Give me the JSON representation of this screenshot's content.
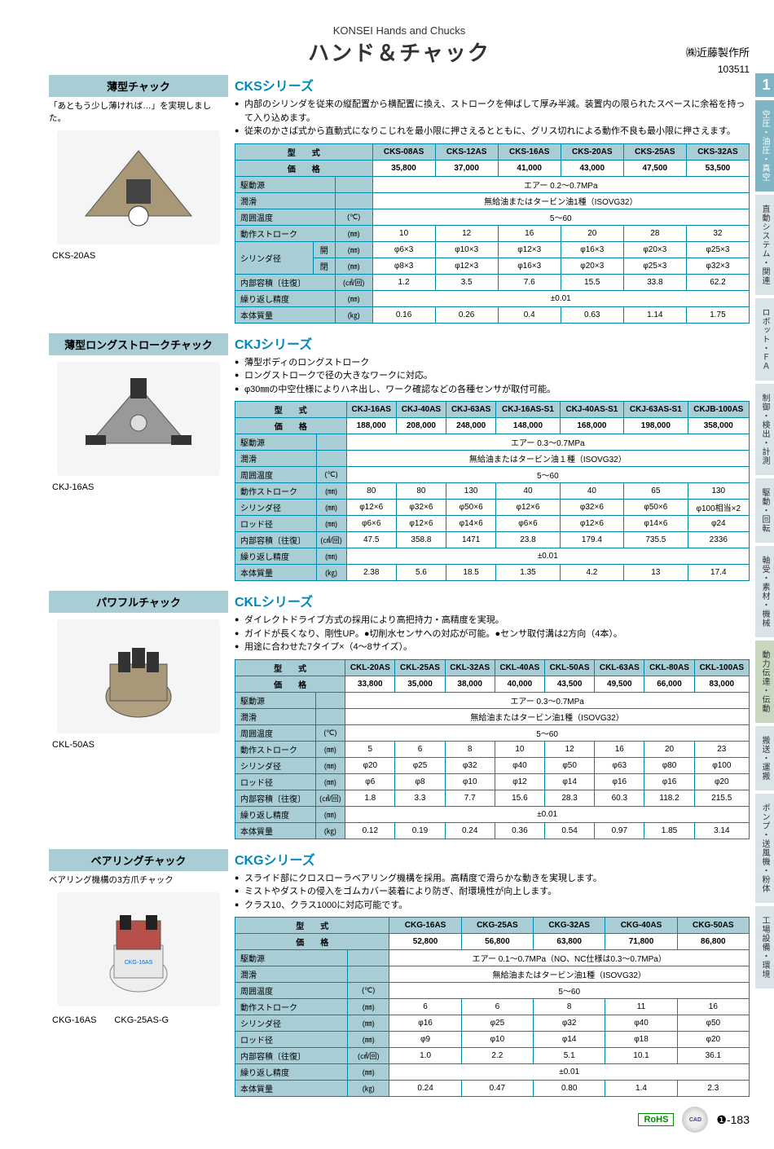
{
  "header": {
    "eng": "KONSEI Hands and Chucks",
    "jp": "ハンド＆チャック",
    "company": "㈱近藤製作所",
    "code": "103511"
  },
  "side_tabs": [
    {
      "label": "空圧・油圧・真空",
      "num": "1",
      "active": true
    },
    {
      "label": "直動システム・関連"
    },
    {
      "label": "ロボット・ＦＡ"
    },
    {
      "label": "制御・検出・計測"
    },
    {
      "label": "駆動・回転"
    },
    {
      "label": "軸受・素材・機械"
    },
    {
      "label": "動力伝達・伝動",
      "green": true
    },
    {
      "label": "搬送・運搬"
    },
    {
      "label": "ポンプ・送風機・粉体"
    },
    {
      "label": "工場設備・環境"
    }
  ],
  "sections": [
    {
      "category": "薄型チャック",
      "category_sub": "「あともう少し薄ければ…」を実現しました。",
      "img_label": "CKS-20AS",
      "series": "CKSシリーズ",
      "bullets": [
        "内部のシリンダを従来の縦配置から横配置に換え、ストロークを伸ばして厚み半減。装置内の限られたスペースに余裕を持って入り込めます。",
        "従来のかさば式から直動式になりこじれを最小限に押さえるとともに、グリス切れによる動作不良も最小限に押さえます。"
      ],
      "table": {
        "models": [
          "CKS-08AS",
          "CKS-12AS",
          "CKS-16AS",
          "CKS-20AS",
          "CKS-25AS",
          "CKS-32AS"
        ],
        "prices": [
          "35,800",
          "37,000",
          "41,000",
          "43,000",
          "47,500",
          "53,500"
        ],
        "rows": [
          {
            "label": "駆動源",
            "unit": "",
            "span": "エアー 0.2〜0.7MPa"
          },
          {
            "label": "潤滑",
            "unit": "",
            "span": "無給油またはタービン油1種（ISOVG32）"
          },
          {
            "label": "周囲温度",
            "unit": "(℃)",
            "span": "5〜60"
          },
          {
            "label": "動作ストローク",
            "unit": "(㎜)",
            "vals": [
              "10",
              "12",
              "16",
              "20",
              "28",
              "32"
            ]
          },
          {
            "label": "シリンダ径",
            "sub": "開",
            "unit": "(㎜)",
            "vals": [
              "φ6×3",
              "φ10×3",
              "φ12×3",
              "φ16×3",
              "φ20×3",
              "φ25×3"
            ]
          },
          {
            "label": "",
            "sub": "閉",
            "unit": "(㎜)",
            "vals": [
              "φ8×3",
              "φ12×3",
              "φ16×3",
              "φ20×3",
              "φ25×3",
              "φ32×3"
            ]
          },
          {
            "label": "内部容積〔往復〕",
            "unit": "(㎤/回)",
            "vals": [
              "1.2",
              "3.5",
              "7.6",
              "15.5",
              "33.8",
              "62.2"
            ]
          },
          {
            "label": "繰り返し精度",
            "unit": "(㎜)",
            "span": "±0.01"
          },
          {
            "label": "本体質量",
            "unit": "(㎏)",
            "vals": [
              "0.16",
              "0.26",
              "0.4",
              "0.63",
              "1.14",
              "1.75"
            ]
          }
        ]
      }
    },
    {
      "category": "薄型ロングストロークチャック",
      "category_sub": "",
      "img_label": "CKJ-16AS",
      "series": "CKJシリーズ",
      "bullets": [
        "薄型ボディのロングストローク",
        "ロングストロークで径の大きなワークに対応。",
        "φ30㎜の中空仕様によりハネ出し、ワーク確認などの各種センサが取付可能。"
      ],
      "table": {
        "models": [
          "CKJ-16AS",
          "CKJ-40AS",
          "CKJ-63AS",
          "CKJ-16AS-S1",
          "CKJ-40AS-S1",
          "CKJ-63AS-S1",
          "CKJB-100AS"
        ],
        "prices": [
          "188,000",
          "208,000",
          "248,000",
          "148,000",
          "168,000",
          "198,000",
          "358,000"
        ],
        "rows": [
          {
            "label": "駆動源",
            "unit": "",
            "span": "エアー 0.3〜0.7MPa"
          },
          {
            "label": "潤滑",
            "unit": "",
            "span": "無給油またはタービン油１種（ISOVG32）"
          },
          {
            "label": "周囲温度",
            "unit": "(℃)",
            "span": "5〜60"
          },
          {
            "label": "動作ストローク",
            "unit": "(㎜)",
            "vals": [
              "80",
              "80",
              "130",
              "40",
              "40",
              "65",
              "130"
            ]
          },
          {
            "label": "シリンダ径",
            "unit": "(㎜)",
            "vals": [
              "φ12×6",
              "φ32×6",
              "φ50×6",
              "φ12×6",
              "φ32×6",
              "φ50×6",
              "φ100相当×2"
            ]
          },
          {
            "label": "ロッド径",
            "unit": "(㎜)",
            "vals": [
              "φ6×6",
              "φ12×6",
              "φ14×6",
              "φ6×6",
              "φ12×6",
              "φ14×6",
              "φ24"
            ]
          },
          {
            "label": "内部容積〔往復〕",
            "unit": "(㎤/回)",
            "vals": [
              "47.5",
              "358.8",
              "1471",
              "23.8",
              "179.4",
              "735.5",
              "2336"
            ]
          },
          {
            "label": "繰り返し精度",
            "unit": "(㎜)",
            "span": "±0.01"
          },
          {
            "label": "本体質量",
            "unit": "(㎏)",
            "vals": [
              "2.38",
              "5.6",
              "18.5",
              "1.35",
              "4.2",
              "13",
              "17.4"
            ]
          }
        ]
      }
    },
    {
      "category": "パワフルチャック",
      "category_sub": "",
      "img_label": "CKL-50AS",
      "series": "CKLシリーズ",
      "bullets": [
        "ダイレクトドライブ方式の採用により高把持力・高精度を実現。",
        "ガイドが長くなり、剛性UP。●切削水センサへの対応が可能。●センサ取付溝は2方向（4本）。",
        "用途に合わせた7タイプ×（4〜8サイズ）。"
      ],
      "table": {
        "models": [
          "CKL-20AS",
          "CKL-25AS",
          "CKL-32AS",
          "CKL-40AS",
          "CKL-50AS",
          "CKL-63AS",
          "CKL-80AS",
          "CKL-100AS"
        ],
        "prices": [
          "33,800",
          "35,000",
          "38,000",
          "40,000",
          "43,500",
          "49,500",
          "66,000",
          "83,000"
        ],
        "rows": [
          {
            "label": "駆動源",
            "unit": "",
            "span": "エアー 0.3〜0.7MPa"
          },
          {
            "label": "潤滑",
            "unit": "",
            "span": "無給油またはタービン油1種（ISOVG32）"
          },
          {
            "label": "周囲温度",
            "unit": "(℃)",
            "span": "5〜60"
          },
          {
            "label": "動作ストローク",
            "unit": "(㎜)",
            "vals": [
              "5",
              "6",
              "8",
              "10",
              "12",
              "16",
              "20",
              "23"
            ]
          },
          {
            "label": "シリンダ径",
            "unit": "(㎜)",
            "vals": [
              "φ20",
              "φ25",
              "φ32",
              "φ40",
              "φ50",
              "φ63",
              "φ80",
              "φ100"
            ]
          },
          {
            "label": "ロッド径",
            "unit": "(㎜)",
            "vals": [
              "φ6",
              "φ8",
              "φ10",
              "φ12",
              "φ14",
              "φ16",
              "φ16",
              "φ20"
            ]
          },
          {
            "label": "内部容積〔往復〕",
            "unit": "(㎤/回)",
            "vals": [
              "1.8",
              "3.3",
              "7.7",
              "15.6",
              "28.3",
              "60.3",
              "118.2",
              "215.5"
            ]
          },
          {
            "label": "繰り返し精度",
            "unit": "(㎜)",
            "span": "±0.01"
          },
          {
            "label": "本体質量",
            "unit": "(㎏)",
            "vals": [
              "0.12",
              "0.19",
              "0.24",
              "0.36",
              "0.54",
              "0.97",
              "1.85",
              "3.14"
            ]
          }
        ]
      }
    },
    {
      "category": "ベアリングチャック",
      "category_sub": "ベアリング機構の3方爪チャック",
      "img_label": "CKG-16AS　　CKG-25AS-G",
      "series": "CKGシリーズ",
      "bullets": [
        "スライド部にクロスローラベアリング機構を採用。高精度で滑らかな動きを実現します。",
        "ミストやダストの侵入をゴムカバー装着により防ぎ、耐環境性が向上します。",
        "クラス10、クラス1000に対応可能です。"
      ],
      "table": {
        "models": [
          "CKG-16AS",
          "CKG-25AS",
          "CKG-32AS",
          "CKG-40AS",
          "CKG-50AS"
        ],
        "prices": [
          "52,800",
          "56,800",
          "63,800",
          "71,800",
          "86,800"
        ],
        "rows": [
          {
            "label": "駆動源",
            "unit": "",
            "span": "エアー 0.1〜0.7MPa（NO、NC仕様は0.3〜0.7MPa）"
          },
          {
            "label": "潤滑",
            "unit": "",
            "span": "無給油またはタービン油1種（ISOVG32）"
          },
          {
            "label": "周囲温度",
            "unit": "(℃)",
            "span": "5〜60"
          },
          {
            "label": "動作ストローク",
            "unit": "(㎜)",
            "vals": [
              "6",
              "6",
              "8",
              "11",
              "16"
            ]
          },
          {
            "label": "シリンダ径",
            "unit": "(㎜)",
            "vals": [
              "φ16",
              "φ25",
              "φ32",
              "φ40",
              "φ50"
            ]
          },
          {
            "label": "ロッド径",
            "unit": "(㎜)",
            "vals": [
              "φ9",
              "φ10",
              "φ14",
              "φ18",
              "φ20"
            ]
          },
          {
            "label": "内部容積〔往復〕",
            "unit": "(㎤/回)",
            "vals": [
              "1.0",
              "2.2",
              "5.1",
              "10.1",
              "36.1"
            ]
          },
          {
            "label": "繰り返し精度",
            "unit": "(㎜)",
            "span": "±0.01"
          },
          {
            "label": "本体質量",
            "unit": "(㎏)",
            "vals": [
              "0.24",
              "0.47",
              "0.80",
              "1.4",
              "2.3"
            ]
          }
        ]
      }
    }
  ],
  "footer": {
    "rohs": "RoHS",
    "cad": "CAD",
    "page": "❶-183"
  }
}
